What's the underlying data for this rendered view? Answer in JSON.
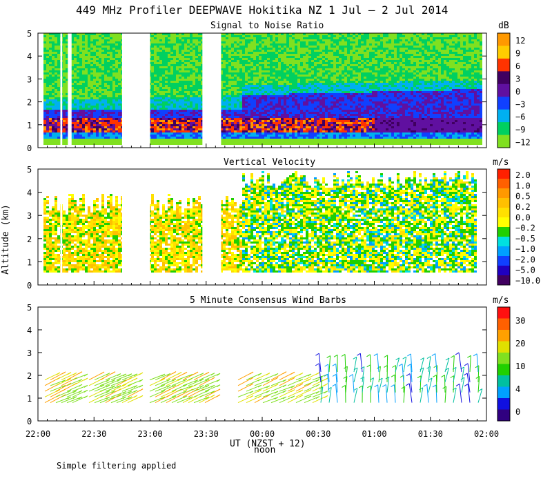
{
  "title": "449 MHz Profiler DEEPWAVE Hokitika NZ  1 Jul –  2 Jul 2014",
  "footer": "Simple filtering applied",
  "x_axis": {
    "ticks": [
      "22:00",
      "22:30",
      "23:00",
      "23:30",
      "00:00",
      "00:30",
      "01:00",
      "01:30",
      "02:00"
    ],
    "noon_label": "noon",
    "label": "UT  (NZST + 12)"
  },
  "chart_data": [
    {
      "type": "heatmap",
      "title": "Signal to Noise Ratio",
      "ylabel": "",
      "ylim": [
        0,
        5
      ],
      "yticks": [
        "0",
        "1",
        "2",
        "3",
        "4",
        "5"
      ],
      "unit": "dB",
      "colorbar_ticks": [
        "12",
        "9",
        "6",
        "3",
        "0",
        "−3",
        "−6",
        "−9",
        "−12"
      ],
      "colors": [
        "#ff9900",
        "#ffcc00",
        "#ff3300",
        "#400060",
        "#6010a0",
        "#1040ff",
        "#00b0f0",
        "#00d060",
        "#80e020"
      ],
      "data_gaps_utc": [
        [
          "22:12",
          "22:13"
        ],
        [
          "22:16",
          "22:18"
        ],
        [
          "22:45",
          "23:00"
        ],
        [
          "23:28",
          "23:38"
        ]
      ]
    },
    {
      "type": "heatmap",
      "title": "Vertical Velocity",
      "ylabel": "Altitude (km)",
      "ylim": [
        0,
        5
      ],
      "yticks": [
        "0",
        "1",
        "2",
        "3",
        "4",
        "5"
      ],
      "unit": "m/s",
      "colorbar_ticks": [
        "2.0",
        "1.0",
        "0.5",
        "0.2",
        "0.0",
        "−0.2",
        "−0.5",
        "−1.0",
        "−2.0",
        "−5.0",
        "−10.0"
      ],
      "colors": [
        "#ff2000",
        "#ff6000",
        "#ff9900",
        "#ffc000",
        "#ffe000",
        "#ffff00",
        "#20d000",
        "#00e0e0",
        "#00a0ff",
        "#1040ff",
        "#2000c0",
        "#400060"
      ],
      "data_gaps_utc": [
        [
          "22:12",
          "22:13"
        ],
        [
          "22:45",
          "23:00"
        ],
        [
          "23:28",
          "23:38"
        ]
      ]
    },
    {
      "type": "heatmap",
      "title": "5 Minute Consensus Wind Barbs",
      "ylabel": "",
      "ylim": [
        0,
        5
      ],
      "yticks": [
        "0",
        "1",
        "2",
        "3",
        "4",
        "5"
      ],
      "unit": "m/s",
      "colorbar_ticks": [
        "30",
        "20",
        "10",
        "4",
        "0"
      ],
      "colors": [
        "#ff1010",
        "#ff6000",
        "#ffa000",
        "#e0e000",
        "#80e020",
        "#20d000",
        "#00c0a0",
        "#00a0ff",
        "#1010e0",
        "#300080"
      ],
      "barb_color_rule": "speed: low altitude barbs ~8–15 m/s before 00:40; 5–10 m/s cyan/green after 00:40"
    }
  ]
}
